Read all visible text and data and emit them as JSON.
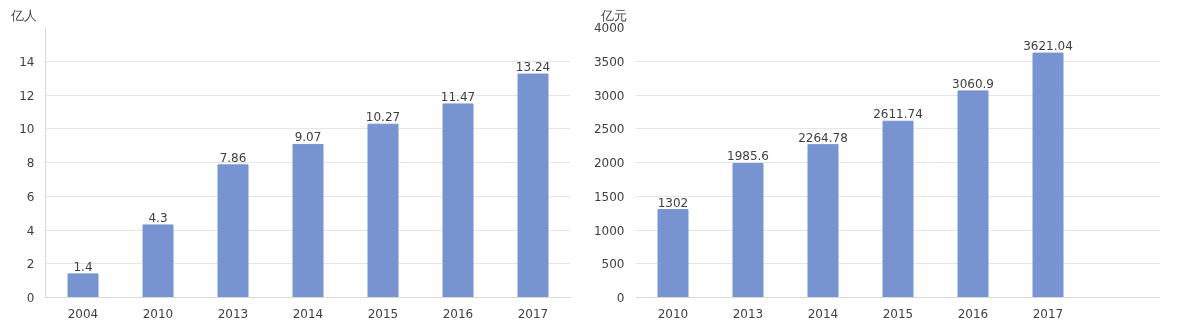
{
  "chart_data": [
    {
      "type": "bar",
      "ylabel": "亿人",
      "categories": [
        "2004",
        "2010",
        "2013",
        "2014",
        "2015",
        "2016",
        "2017"
      ],
      "series": [
        {
          "color": "#7794d1",
          "values": [
            1.4,
            4.3,
            7.86,
            9.07,
            10.27,
            11.47,
            13.24
          ]
        }
      ],
      "ylim": [
        0,
        16
      ],
      "yticks": [
        0,
        2,
        4,
        6,
        8,
        10,
        12,
        14
      ],
      "grid": "y",
      "data_labels": true
    },
    {
      "type": "bar",
      "ylabel": "亿元",
      "categories": [
        "2010",
        "2013",
        "2014",
        "2015",
        "2016",
        "2017",
        null
      ],
      "series": [
        {
          "color": "#7794d1",
          "values": [
            1302,
            1985.6,
            2264.78,
            2611.74,
            3060.9,
            3621.04,
            null
          ]
        }
      ],
      "ylim": [
        0,
        4000
      ],
      "yticks": [
        0,
        500,
        1000,
        1500,
        2000,
        2500,
        3000,
        3500,
        4000
      ],
      "grid": "y",
      "data_labels": true
    }
  ]
}
